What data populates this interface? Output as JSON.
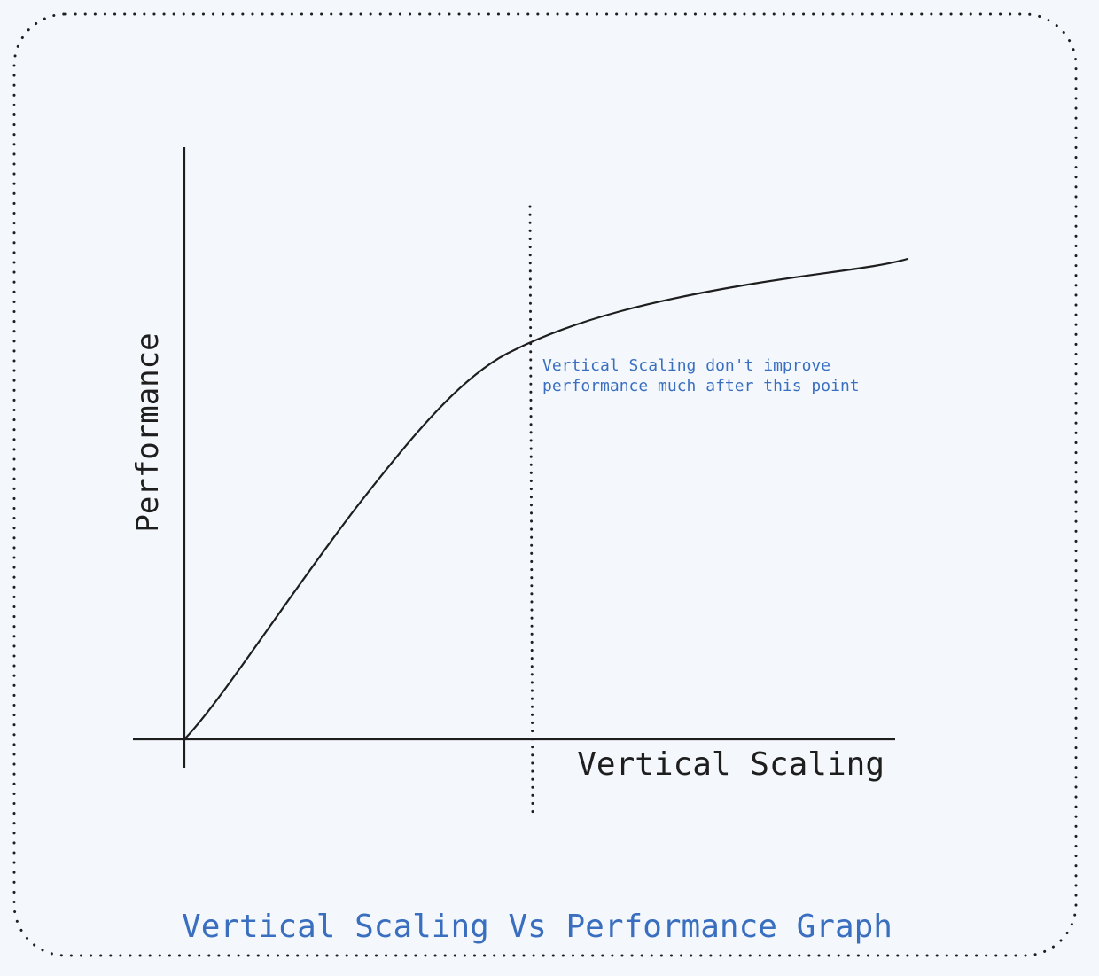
{
  "diagram": {
    "caption": "Vertical Scaling Vs Performance Graph",
    "x_axis_label": "Vertical Scaling",
    "y_axis_label": "Performance",
    "annotation": {
      "line1": "Vertical Scaling don't improve",
      "line2": "performance much after this point"
    },
    "colors": {
      "background": "#f4f8fc",
      "frame": "#1e1e1e",
      "axis": "#1e1e1e",
      "curve": "#1e1e1e",
      "annotation": "#3a6fc0",
      "caption": "#3a6fc0",
      "label": "#1e1e1e"
    }
  }
}
